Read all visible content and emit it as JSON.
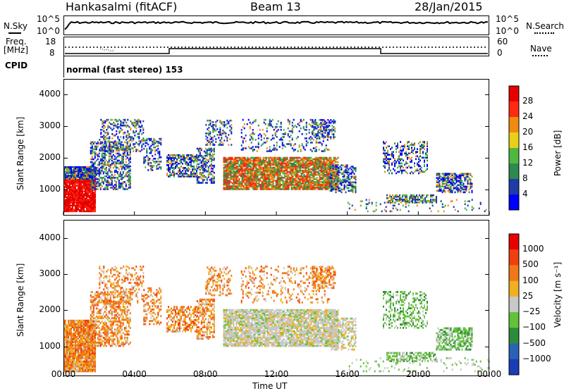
{
  "header": {
    "station": "Hankasalmi (fitACF)",
    "beam": "Beam 13",
    "date": "28/Jan/2015"
  },
  "strips": {
    "nsky_label": "N.Sky",
    "nsearch_label": "N.Search",
    "nsky_ticks": [
      "10^5",
      "10^0"
    ],
    "freq_label_line1": "Freq.",
    "freq_label_line2": "[MHz]",
    "freq_ticks": [
      "18",
      "8"
    ],
    "nave_label": "Nave",
    "nave_ticks": [
      "60",
      "0"
    ],
    "cpid_label": "CPID",
    "cpid_value": "normal (fast stereo) 153"
  },
  "chart_data": [
    {
      "type": "heatmap",
      "name": "power",
      "ylabel": "Slant Range [km]",
      "yticks": [
        "4000",
        "3000",
        "2000",
        "1000"
      ],
      "ytick_values": [
        4000,
        3000,
        2000,
        1000
      ],
      "ylim": [
        180,
        4500
      ],
      "xlim_hours": [
        0,
        24
      ],
      "colorbar_label": "Power [dB]",
      "colorbar_ticks": [
        "28",
        "24",
        "20",
        "16",
        "12",
        "8",
        "4"
      ],
      "colorbar_colors": [
        "#0000ff",
        "#1e3ca6",
        "#2d8a4e",
        "#4fb840",
        "#e8d018",
        "#f08a10",
        "#ff2a10",
        "#e60000"
      ]
    },
    {
      "type": "heatmap",
      "name": "velocity",
      "ylabel": "Slant Range [km]",
      "yticks": [
        "4000",
        "3000",
        "2000",
        "1000"
      ],
      "ytick_values": [
        4000,
        3000,
        2000,
        1000
      ],
      "ylim": [
        180,
        4500
      ],
      "xlim_hours": [
        0,
        24
      ],
      "colorbar_label": "Velocity [m s⁻¹]",
      "colorbar_ticks": [
        "1000",
        "500",
        "100",
        "25",
        "−25",
        "−100",
        "−500",
        "−1000"
      ],
      "colorbar_colors": [
        "#1a3cb4",
        "#2a62b6",
        "#2d8c3c",
        "#62c23a",
        "#c8c8c8",
        "#f0b020",
        "#f07818",
        "#f04010",
        "#e80000"
      ]
    }
  ],
  "xaxis": {
    "label": "Time UT",
    "ticks": [
      "00:00",
      "04:00",
      "08:00",
      "12:00",
      "16:00",
      "20:00",
      "00:00"
    ]
  }
}
